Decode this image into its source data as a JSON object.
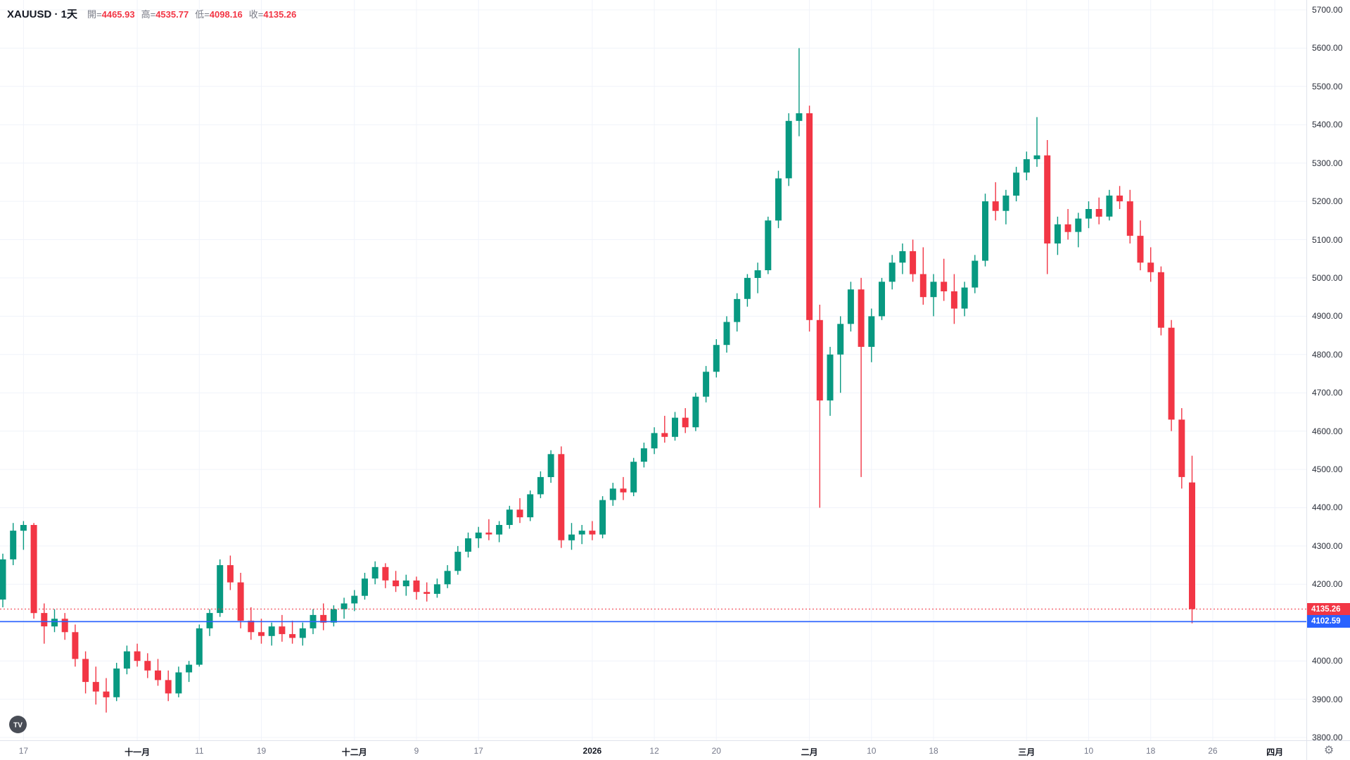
{
  "legend": {
    "title": "XAUUSD · 1天",
    "ohlc": [
      {
        "label": "開=",
        "value": "4465.93"
      },
      {
        "label": "高=",
        "value": "4535.77"
      },
      {
        "label": "低=",
        "value": "4098.16"
      },
      {
        "label": "收=",
        "value": "4135.26"
      }
    ]
  },
  "price_labels": {
    "last": {
      "value": "4135.26",
      "price": 4135.26,
      "color": "#f23645"
    },
    "line": {
      "value": "4102.59",
      "price": 4102.59,
      "color": "#2962ff"
    }
  },
  "footer": {
    "gear_icon": "⚙",
    "logo_text": "TV"
  },
  "colors": {
    "up": "#089981",
    "down": "#f23645",
    "grid": "#f0f3fa",
    "axis_border": "#e0e3eb",
    "axis_text": "#2a2e39",
    "minor_text": "#75798a",
    "line_blue": "#2962ff",
    "background": "#ffffff"
  },
  "chart_data": {
    "type": "candlestick",
    "symbol": "XAUUSD",
    "timeframe": "1天",
    "legend_position": "top-left",
    "grid": true,
    "y_axis": {
      "min": 3800,
      "max": 5700,
      "step": 100,
      "ticks": [
        {
          "v": 3800,
          "label": "3800.00"
        },
        {
          "v": 3900,
          "label": "3900.00"
        },
        {
          "v": 4000,
          "label": "4000.00"
        },
        {
          "v": 4100,
          "label": "4100.00"
        },
        {
          "v": 4200,
          "label": "4200.00"
        },
        {
          "v": 4300,
          "label": "4300.00"
        },
        {
          "v": 4400,
          "label": "4400.00"
        },
        {
          "v": 4500,
          "label": "4500.00"
        },
        {
          "v": 4600,
          "label": "4600.00"
        },
        {
          "v": 4700,
          "label": "4700.00"
        },
        {
          "v": 4800,
          "label": "4800.00"
        },
        {
          "v": 4900,
          "label": "4900.00"
        },
        {
          "v": 5000,
          "label": "5000.00"
        },
        {
          "v": 5100,
          "label": "5100.00"
        },
        {
          "v": 5200,
          "label": "5200.00"
        },
        {
          "v": 5300,
          "label": "5300.00"
        },
        {
          "v": 5400,
          "label": "5400.00"
        },
        {
          "v": 5500,
          "label": "5500.00"
        },
        {
          "v": 5600,
          "label": "5600.00"
        },
        {
          "v": 5700,
          "label": "5700.00"
        }
      ]
    },
    "x_labels": [
      {
        "label": "17",
        "slot": 2,
        "major": false
      },
      {
        "label": "十一月",
        "slot": 13,
        "major": true
      },
      {
        "label": "11",
        "slot": 19,
        "major": false
      },
      {
        "label": "19",
        "slot": 25,
        "major": false
      },
      {
        "label": "十二月",
        "slot": 34,
        "major": true
      },
      {
        "label": "9",
        "slot": 40,
        "major": false
      },
      {
        "label": "17",
        "slot": 46,
        "major": false
      },
      {
        "label": "2026",
        "slot": 57,
        "major": true
      },
      {
        "label": "12",
        "slot": 63,
        "major": false
      },
      {
        "label": "20",
        "slot": 69,
        "major": false
      },
      {
        "label": "二月",
        "slot": 78,
        "major": true
      },
      {
        "label": "10",
        "slot": 84,
        "major": false
      },
      {
        "label": "18",
        "slot": 90,
        "major": false
      },
      {
        "label": "三月",
        "slot": 99,
        "major": true
      },
      {
        "label": "10",
        "slot": 105,
        "major": false
      },
      {
        "label": "18",
        "slot": 111,
        "major": false
      },
      {
        "label": "26",
        "slot": 117,
        "major": false
      },
      {
        "label": "四月",
        "slot": 123,
        "major": true
      }
    ],
    "horizontal_lines": [
      {
        "price": 4135.26,
        "style": "dotted",
        "color": "#f23645",
        "name": "last-price-line"
      },
      {
        "price": 4102.59,
        "style": "solid",
        "color": "#2962ff",
        "name": "user-horizontal-line"
      }
    ],
    "candles": [
      [
        4160,
        4280,
        4140,
        4265
      ],
      [
        4265,
        4360,
        4250,
        4340
      ],
      [
        4340,
        4365,
        4290,
        4355
      ],
      [
        4355,
        4360,
        4110,
        4125
      ],
      [
        4125,
        4150,
        4045,
        4090
      ],
      [
        4090,
        4135,
        4075,
        4110
      ],
      [
        4110,
        4125,
        4055,
        4075
      ],
      [
        4075,
        4095,
        3985,
        4005
      ],
      [
        4005,
        4025,
        3915,
        3945
      ],
      [
        3945,
        3985,
        3886,
        3920
      ],
      [
        3920,
        3955,
        3865,
        3905
      ],
      [
        3905,
        3995,
        3895,
        3980
      ],
      [
        3980,
        4040,
        3965,
        4025
      ],
      [
        4025,
        4045,
        3985,
        4000
      ],
      [
        4000,
        4020,
        3955,
        3975
      ],
      [
        3975,
        4005,
        3935,
        3950
      ],
      [
        3950,
        3975,
        3895,
        3915
      ],
      [
        3915,
        3985,
        3905,
        3970
      ],
      [
        3970,
        4000,
        3945,
        3990
      ],
      [
        3990,
        4095,
        3985,
        4085
      ],
      [
        4085,
        4135,
        4065,
        4125
      ],
      [
        4125,
        4265,
        4115,
        4250
      ],
      [
        4250,
        4275,
        4185,
        4205
      ],
      [
        4205,
        4230,
        4085,
        4105
      ],
      [
        4105,
        4140,
        4055,
        4075
      ],
      [
        4075,
        4110,
        4045,
        4065
      ],
      [
        4065,
        4100,
        4040,
        4090
      ],
      [
        4090,
        4120,
        4050,
        4070
      ],
      [
        4070,
        4105,
        4045,
        4060
      ],
      [
        4060,
        4100,
        4040,
        4085
      ],
      [
        4085,
        4135,
        4070,
        4120
      ],
      [
        4120,
        4150,
        4080,
        4100
      ],
      [
        4100,
        4145,
        4090,
        4135
      ],
      [
        4135,
        4165,
        4110,
        4150
      ],
      [
        4150,
        4185,
        4130,
        4170
      ],
      [
        4170,
        4230,
        4160,
        4215
      ],
      [
        4215,
        4260,
        4200,
        4245
      ],
      [
        4245,
        4255,
        4190,
        4210
      ],
      [
        4210,
        4235,
        4180,
        4195
      ],
      [
        4195,
        4225,
        4170,
        4210
      ],
      [
        4210,
        4220,
        4160,
        4180
      ],
      [
        4180,
        4205,
        4155,
        4175
      ],
      [
        4175,
        4215,
        4165,
        4200
      ],
      [
        4200,
        4250,
        4190,
        4235
      ],
      [
        4235,
        4300,
        4225,
        4285
      ],
      [
        4285,
        4335,
        4270,
        4320
      ],
      [
        4320,
        4350,
        4295,
        4335
      ],
      [
        4335,
        4370,
        4315,
        4330
      ],
      [
        4330,
        4365,
        4310,
        4355
      ],
      [
        4355,
        4405,
        4345,
        4395
      ],
      [
        4395,
        4425,
        4360,
        4375
      ],
      [
        4375,
        4445,
        4365,
        4435
      ],
      [
        4435,
        4495,
        4425,
        4480
      ],
      [
        4480,
        4550,
        4465,
        4540
      ],
      [
        4540,
        4560,
        4295,
        4315
      ],
      [
        4315,
        4360,
        4290,
        4330
      ],
      [
        4330,
        4355,
        4305,
        4340
      ],
      [
        4340,
        4365,
        4315,
        4330
      ],
      [
        4330,
        4430,
        4320,
        4420
      ],
      [
        4420,
        4465,
        4405,
        4450
      ],
      [
        4450,
        4480,
        4420,
        4440
      ],
      [
        4440,
        4530,
        4430,
        4520
      ],
      [
        4520,
        4570,
        4505,
        4555
      ],
      [
        4555,
        4610,
        4540,
        4595
      ],
      [
        4595,
        4640,
        4570,
        4585
      ],
      [
        4585,
        4650,
        4575,
        4635
      ],
      [
        4635,
        4660,
        4595,
        4610
      ],
      [
        4610,
        4700,
        4600,
        4690
      ],
      [
        4690,
        4770,
        4675,
        4755
      ],
      [
        4755,
        4840,
        4740,
        4825
      ],
      [
        4825,
        4900,
        4805,
        4885
      ],
      [
        4885,
        4960,
        4860,
        4945
      ],
      [
        4945,
        5010,
        4925,
        5000
      ],
      [
        5000,
        5040,
        4960,
        5020
      ],
      [
        5020,
        5160,
        5010,
        5150
      ],
      [
        5150,
        5280,
        5130,
        5260
      ],
      [
        5260,
        5430,
        5240,
        5410
      ],
      [
        5410,
        5600,
        5370,
        5430
      ],
      [
        5430,
        5450,
        4860,
        4890
      ],
      [
        4890,
        4930,
        4400,
        4680
      ],
      [
        4680,
        4820,
        4640,
        4800
      ],
      [
        4800,
        4900,
        4700,
        4880
      ],
      [
        4880,
        4990,
        4860,
        4970
      ],
      [
        4970,
        5000,
        4480,
        4820
      ],
      [
        4820,
        4920,
        4780,
        4900
      ],
      [
        4900,
        5000,
        4890,
        4990
      ],
      [
        4990,
        5060,
        4970,
        5040
      ],
      [
        5040,
        5090,
        5010,
        5070
      ],
      [
        5070,
        5100,
        4990,
        5010
      ],
      [
        5010,
        5080,
        4930,
        4950
      ],
      [
        4950,
        5010,
        4900,
        4990
      ],
      [
        4990,
        5050,
        4940,
        4965
      ],
      [
        4965,
        5010,
        4880,
        4920
      ],
      [
        4920,
        4990,
        4900,
        4975
      ],
      [
        4975,
        5060,
        4960,
        5045
      ],
      [
        5045,
        5220,
        5030,
        5200
      ],
      [
        5200,
        5250,
        5150,
        5175
      ],
      [
        5175,
        5230,
        5140,
        5215
      ],
      [
        5215,
        5290,
        5200,
        5275
      ],
      [
        5275,
        5330,
        5255,
        5310
      ],
      [
        5310,
        5420,
        5290,
        5320
      ],
      [
        5320,
        5360,
        5010,
        5090
      ],
      [
        5090,
        5160,
        5060,
        5140
      ],
      [
        5140,
        5180,
        5100,
        5120
      ],
      [
        5120,
        5170,
        5080,
        5155
      ],
      [
        5155,
        5200,
        5130,
        5180
      ],
      [
        5180,
        5210,
        5140,
        5160
      ],
      [
        5160,
        5230,
        5150,
        5215
      ],
      [
        5215,
        5240,
        5180,
        5200
      ],
      [
        5200,
        5230,
        5090,
        5110
      ],
      [
        5110,
        5150,
        5020,
        5040
      ],
      [
        5040,
        5080,
        4990,
        5015
      ],
      [
        5015,
        5030,
        4850,
        4870
      ],
      [
        4870,
        4890,
        4600,
        4630
      ],
      [
        4630,
        4660,
        4450,
        4480
      ],
      [
        4465.93,
        4535.77,
        4098.16,
        4135.26
      ]
    ]
  }
}
